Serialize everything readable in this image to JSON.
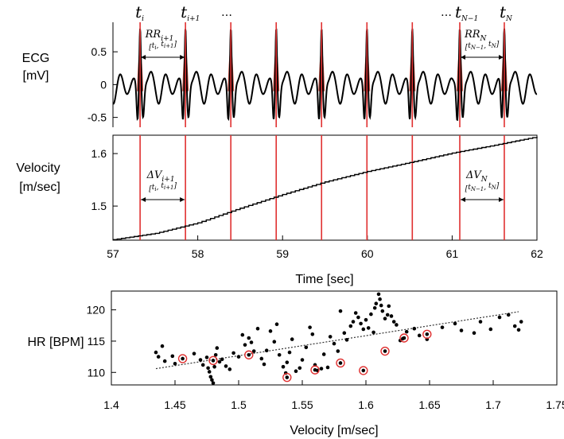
{
  "chart_data": [
    {
      "type": "line",
      "id": "ecg",
      "ylabel_lines": [
        "ECG",
        "[mV]"
      ],
      "xlim": [
        57,
        62
      ],
      "ylim": [
        -0.65,
        0.95
      ],
      "yticks": [
        {
          "v": 0.5,
          "label": "0.5"
        },
        {
          "v": 0,
          "label": "0"
        },
        {
          "v": -0.5,
          "label": "-0.5"
        }
      ],
      "r_peaks": [
        57.32,
        57.855,
        58.39,
        58.925,
        59.46,
        59.995,
        60.53,
        61.09,
        61.615
      ],
      "peak_labels": [
        {
          "t": 57.32,
          "base": "t",
          "sub": "i"
        },
        {
          "t": 57.855,
          "base": "t",
          "sub": "i+1"
        },
        {
          "t": 61.09,
          "base": "t",
          "sub": "N−1"
        },
        {
          "t": 61.615,
          "base": "t",
          "sub": "N"
        }
      ],
      "ellipses": [
        "…",
        "…"
      ],
      "annotations": [
        {
          "from": 57.32,
          "to": 57.855,
          "label": "RR",
          "label_sub": "i+1",
          "interval": "[t_i, t_{i+1}]",
          "bracket_a": "t",
          "bracket_a_sub": "i",
          "bracket_b": "t",
          "bracket_b_sub": "i+1"
        },
        {
          "from": 61.09,
          "to": 61.615,
          "label": "RR",
          "label_sub": "N",
          "interval": "[t_{N−1}, t_N]",
          "bracket_a": "t",
          "bracket_a_sub": "N−1",
          "bracket_b": "t",
          "bracket_b_sub": "N"
        }
      ],
      "colors": {
        "signal": "#000000",
        "peak_fill": "#c0392b",
        "marker_line": "#e03030"
      }
    },
    {
      "type": "line",
      "id": "velocity",
      "ylabel_lines": [
        "Velocity",
        "[m/sec]"
      ],
      "xlabel": "Time [sec]",
      "xlim": [
        57,
        62
      ],
      "ylim": [
        1.435,
        1.635
      ],
      "xticks": [
        {
          "v": 57,
          "label": "57"
        },
        {
          "v": 58,
          "label": "58"
        },
        {
          "v": 59,
          "label": "59"
        },
        {
          "v": 60,
          "label": "60"
        },
        {
          "v": 61,
          "label": "61"
        },
        {
          "v": 62,
          "label": "62"
        }
      ],
      "yticks": [
        {
          "v": 1.6,
          "label": "1.6"
        },
        {
          "v": 1.5,
          "label": "1.5"
        }
      ],
      "curve": {
        "x": [
          57,
          57.5,
          58,
          58.5,
          59,
          59.5,
          60,
          60.5,
          61,
          61.5,
          62
        ],
        "y": [
          1.436,
          1.448,
          1.468,
          1.496,
          1.522,
          1.546,
          1.566,
          1.583,
          1.601,
          1.616,
          1.632
        ],
        "step": 0.05
      },
      "annotations": [
        {
          "from": 57.32,
          "to": 57.855,
          "label": "ΔV",
          "label_sub": "i+1",
          "bracket_a": "t",
          "bracket_a_sub": "i",
          "bracket_b": "t",
          "bracket_b_sub": "i+1"
        },
        {
          "from": 61.09,
          "to": 61.615,
          "label": "ΔV",
          "label_sub": "N",
          "bracket_a": "t",
          "bracket_a_sub": "N−1",
          "bracket_b": "t",
          "bracket_b_sub": "N"
        }
      ]
    },
    {
      "type": "scatter",
      "id": "hr_vs_velocity",
      "xlabel": "Velocity [m/sec]",
      "ylabel": "HR [BPM]",
      "xlim": [
        1.4,
        1.75
      ],
      "ylim": [
        108,
        123
      ],
      "xticks": [
        {
          "v": 1.4,
          "label": "1.4"
        },
        {
          "v": 1.45,
          "label": "1.45"
        },
        {
          "v": 1.5,
          "label": "1.5"
        },
        {
          "v": 1.55,
          "label": "1.55"
        },
        {
          "v": 1.6,
          "label": "1.6"
        },
        {
          "v": 1.65,
          "label": "1.65"
        },
        {
          "v": 1.7,
          "label": "1.7"
        },
        {
          "v": 1.75,
          "label": "1.75"
        }
      ],
      "yticks": [
        {
          "v": 110,
          "label": "110"
        },
        {
          "v": 115,
          "label": "115"
        },
        {
          "v": 120,
          "label": "120"
        }
      ],
      "trend": {
        "x": [
          1.435,
          1.72
        ],
        "y": [
          110.6,
          119.7
        ]
      },
      "points": [
        [
          1.435,
          113.2
        ],
        [
          1.437,
          112.5
        ],
        [
          1.44,
          114.2
        ],
        [
          1.442,
          111.8
        ],
        [
          1.448,
          112.6
        ],
        [
          1.45,
          111.4
        ],
        [
          1.465,
          113.0
        ],
        [
          1.47,
          112.0
        ],
        [
          1.472,
          111.2
        ],
        [
          1.475,
          112.4
        ],
        [
          1.476,
          110.7
        ],
        [
          1.477,
          110.1
        ],
        [
          1.478,
          109.3
        ],
        [
          1.479,
          108.8
        ],
        [
          1.48,
          108.3
        ],
        [
          1.481,
          110.9
        ],
        [
          1.482,
          112.8
        ],
        [
          1.483,
          113.9
        ],
        [
          1.485,
          111.7
        ],
        [
          1.487,
          112.1
        ],
        [
          1.49,
          111.0
        ],
        [
          1.493,
          110.5
        ],
        [
          1.496,
          113.1
        ],
        [
          1.5,
          112.5
        ],
        [
          1.503,
          116.0
        ],
        [
          1.505,
          114.4
        ],
        [
          1.508,
          115.5
        ],
        [
          1.51,
          114.8
        ],
        [
          1.512,
          113.4
        ],
        [
          1.515,
          117.0
        ],
        [
          1.518,
          112.2
        ],
        [
          1.52,
          111.3
        ],
        [
          1.522,
          113.5
        ],
        [
          1.525,
          116.6
        ],
        [
          1.528,
          114.9
        ],
        [
          1.53,
          117.7
        ],
        [
          1.532,
          112.8
        ],
        [
          1.535,
          110.9
        ],
        [
          1.537,
          109.9
        ],
        [
          1.538,
          111.6
        ],
        [
          1.54,
          113.2
        ],
        [
          1.542,
          115.3
        ],
        [
          1.545,
          110.2
        ],
        [
          1.548,
          110.7
        ],
        [
          1.55,
          112.0
        ],
        [
          1.553,
          114.0
        ],
        [
          1.556,
          117.2
        ],
        [
          1.558,
          116.1
        ],
        [
          1.56,
          111.2
        ],
        [
          1.562,
          110.3
        ],
        [
          1.565,
          110.6
        ],
        [
          1.567,
          112.9
        ],
        [
          1.57,
          110.8
        ],
        [
          1.572,
          115.7
        ],
        [
          1.575,
          114.6
        ],
        [
          1.578,
          113.4
        ],
        [
          1.58,
          119.8
        ],
        [
          1.583,
          116.3
        ],
        [
          1.585,
          115.2
        ],
        [
          1.588,
          117.4
        ],
        [
          1.59,
          118.1
        ],
        [
          1.592,
          119.5
        ],
        [
          1.594,
          118.8
        ],
        [
          1.596,
          117.8
        ],
        [
          1.598,
          116.9
        ],
        [
          1.6,
          118.4
        ],
        [
          1.602,
          117.1
        ],
        [
          1.604,
          119.3
        ],
        [
          1.606,
          116.4
        ],
        [
          1.607,
          120.3
        ],
        [
          1.608,
          121.0
        ],
        [
          1.61,
          122.5
        ],
        [
          1.611,
          121.7
        ],
        [
          1.612,
          120.7
        ],
        [
          1.613,
          119.8
        ],
        [
          1.615,
          118.6
        ],
        [
          1.617,
          119.2
        ],
        [
          1.618,
          120.6
        ],
        [
          1.62,
          119.0
        ],
        [
          1.622,
          118.1
        ],
        [
          1.624,
          117.6
        ],
        [
          1.627,
          115.1
        ],
        [
          1.629,
          115.4
        ],
        [
          1.632,
          116.5
        ],
        [
          1.638,
          117.0
        ],
        [
          1.642,
          115.9
        ],
        [
          1.648,
          115.3
        ],
        [
          1.66,
          117.2
        ],
        [
          1.67,
          117.8
        ],
        [
          1.675,
          116.7
        ],
        [
          1.685,
          116.3
        ],
        [
          1.69,
          118.1
        ],
        [
          1.698,
          116.9
        ],
        [
          1.705,
          118.8
        ],
        [
          1.712,
          119.2
        ],
        [
          1.717,
          117.4
        ],
        [
          1.72,
          116.8
        ],
        [
          1.722,
          118.1
        ]
      ],
      "highlighted": [
        [
          1.456,
          112.2
        ],
        [
          1.48,
          111.9
        ],
        [
          1.508,
          112.8
        ],
        [
          1.538,
          109.2
        ],
        [
          1.56,
          110.4
        ],
        [
          1.58,
          111.5
        ],
        [
          1.598,
          110.3
        ],
        [
          1.615,
          113.4
        ],
        [
          1.63,
          115.5
        ],
        [
          1.648,
          116.1
        ]
      ],
      "colors": {
        "point": "#000000",
        "highlight": "#e03030",
        "trend": "#333333"
      }
    }
  ]
}
